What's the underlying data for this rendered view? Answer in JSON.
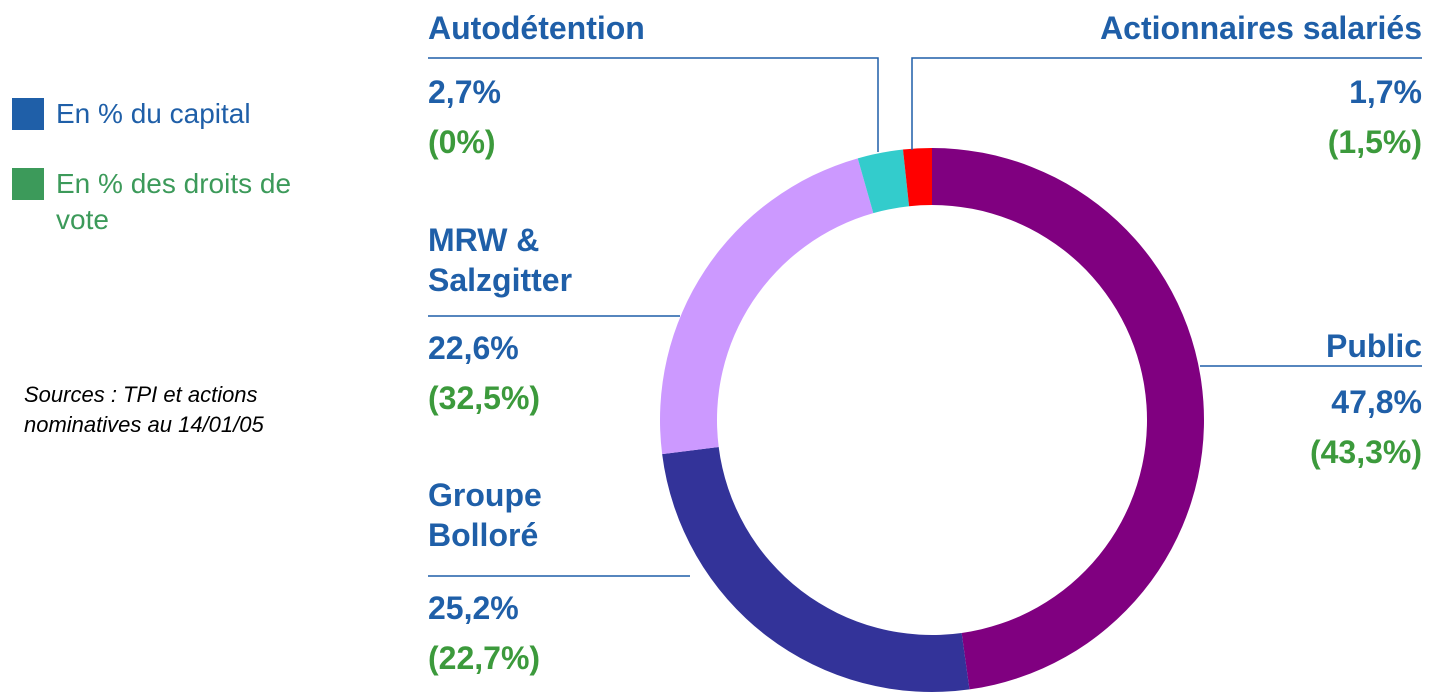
{
  "chart_data": {
    "type": "pie",
    "donut": true,
    "categories": [
      "Public",
      "Groupe Bolloré",
      "MRW & Salzgitter",
      "Autodétention",
      "Actionnaires salariés"
    ],
    "colors": [
      "#800080",
      "#333399",
      "#cc99ff",
      "#33cccc",
      "#ff0000"
    ],
    "series": [
      {
        "name": "En % du capital",
        "color": "#1f5fa8",
        "values": [
          47.8,
          25.2,
          22.6,
          2.7,
          1.7
        ],
        "value_labels": [
          "47,8%",
          "25,2%",
          "22,6%",
          "2,7%",
          "1,7%"
        ]
      },
      {
        "name": "En % des droits de vote",
        "color": "#3c9a5a",
        "values": [
          43.3,
          22.7,
          32.5,
          0,
          1.5
        ],
        "value_labels": [
          "(43,3%)",
          "(22,7%)",
          "(32,5%)",
          "(0%)",
          "(1,5%)"
        ]
      }
    ],
    "note": "Sources : TPI  et actions nominatives au 14/01/05"
  }
}
